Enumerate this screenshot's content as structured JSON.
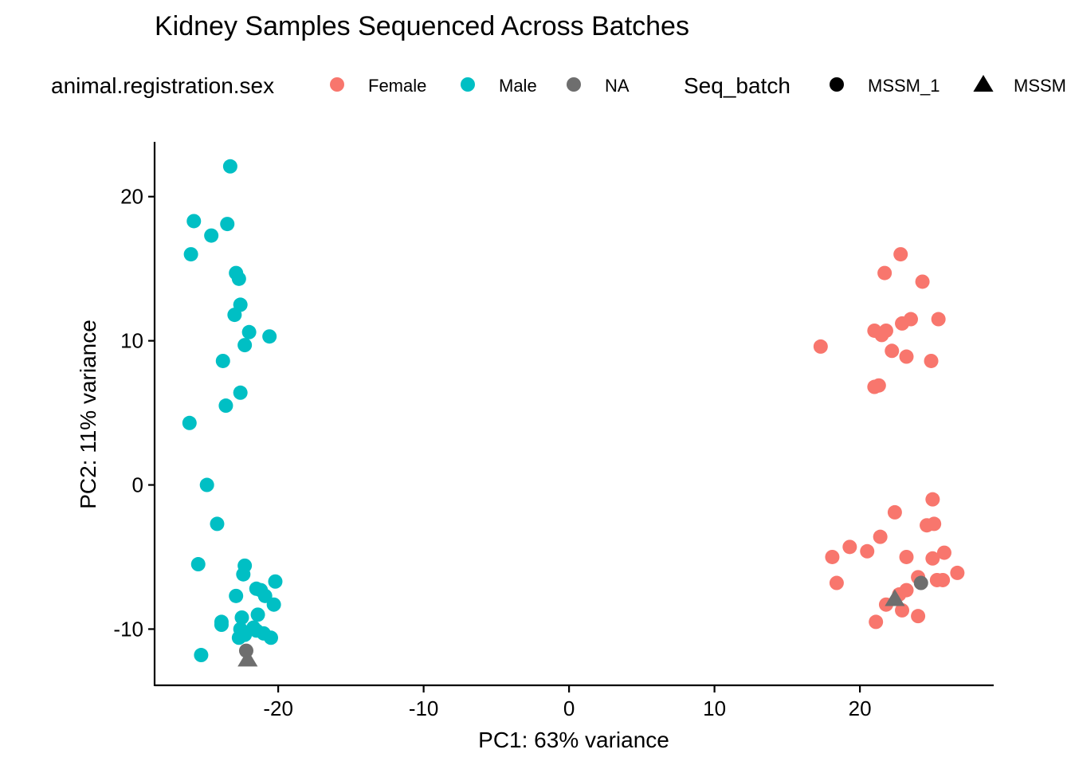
{
  "chart_data": {
    "type": "scatter",
    "title": "Kidney Samples Sequenced Across Batches",
    "xlabel": "PC1: 63% variance",
    "ylabel": "PC2: 11% variance",
    "xlim": [
      -28.5,
      29.2
    ],
    "ylim": [
      -13.9,
      23.8
    ],
    "xticks": [
      -20,
      -10,
      0,
      10,
      20
    ],
    "xtick_labels": [
      "-20",
      "-10",
      "0",
      "10",
      "20"
    ],
    "yticks": [
      -10,
      0,
      10,
      20
    ],
    "ytick_labels": [
      "-10",
      "0",
      "10",
      "20"
    ],
    "grid": false,
    "legend_position": "top",
    "legends": [
      {
        "title": "animal.registration.sex",
        "entries": [
          {
            "label": "Female",
            "color": "#F8766D",
            "shape": "circle"
          },
          {
            "label": "Male",
            "color": "#00BFC4",
            "shape": "circle"
          },
          {
            "label": "NA",
            "color": "#6E6E6E",
            "shape": "circle"
          }
        ]
      },
      {
        "title": "Seq_batch",
        "entries": [
          {
            "label": "MSSM_1",
            "color": "#000000",
            "shape": "circle"
          },
          {
            "label": "MSSM",
            "color": "#000000",
            "shape": "triangle"
          }
        ]
      }
    ],
    "series": [
      {
        "name": "Male",
        "color": "#00BFC4",
        "batch": "MSSM_1",
        "shape": "circle",
        "points": [
          [
            -23.3,
            22.1
          ],
          [
            -25.8,
            18.3
          ],
          [
            -23.5,
            18.1
          ],
          [
            -24.6,
            17.3
          ],
          [
            -26.0,
            16.0
          ],
          [
            -22.9,
            14.7
          ],
          [
            -22.7,
            14.3
          ],
          [
            -22.6,
            12.5
          ],
          [
            -23.0,
            11.8
          ],
          [
            -22.0,
            10.6
          ],
          [
            -20.6,
            10.3
          ],
          [
            -22.3,
            9.7
          ],
          [
            -23.8,
            8.6
          ],
          [
            -22.6,
            6.4
          ],
          [
            -23.6,
            5.5
          ],
          [
            -26.1,
            4.3
          ],
          [
            -24.9,
            0.0
          ],
          [
            -24.2,
            -2.7
          ],
          [
            -25.5,
            -5.5
          ],
          [
            -22.3,
            -5.6
          ],
          [
            -22.4,
            -6.2
          ],
          [
            -20.2,
            -6.7
          ],
          [
            -21.5,
            -7.2
          ],
          [
            -21.2,
            -7.3
          ],
          [
            -22.9,
            -7.7
          ],
          [
            -20.9,
            -7.7
          ],
          [
            -20.3,
            -8.3
          ],
          [
            -21.4,
            -9.0
          ],
          [
            -22.5,
            -9.2
          ],
          [
            -23.9,
            -9.5
          ],
          [
            -23.9,
            -9.7
          ],
          [
            -21.7,
            -9.9
          ],
          [
            -22.6,
            -10.0
          ],
          [
            -21.5,
            -10.1
          ],
          [
            -21.0,
            -10.3
          ],
          [
            -22.3,
            -10.4
          ],
          [
            -20.5,
            -10.6
          ],
          [
            -22.7,
            -10.6
          ],
          [
            -25.3,
            -11.8
          ]
        ]
      },
      {
        "name": "Female",
        "color": "#F8766D",
        "batch": "MSSM_1",
        "shape": "circle",
        "points": [
          [
            22.8,
            16.0
          ],
          [
            21.7,
            14.7
          ],
          [
            24.3,
            14.1
          ],
          [
            25.4,
            11.5
          ],
          [
            23.5,
            11.5
          ],
          [
            22.9,
            11.2
          ],
          [
            21.0,
            10.7
          ],
          [
            21.8,
            10.7
          ],
          [
            21.5,
            10.4
          ],
          [
            17.3,
            9.6
          ],
          [
            22.2,
            9.3
          ],
          [
            23.2,
            8.9
          ],
          [
            24.9,
            8.6
          ],
          [
            21.3,
            6.9
          ],
          [
            21.0,
            6.8
          ],
          [
            25.0,
            -1.0
          ],
          [
            22.4,
            -1.9
          ],
          [
            24.6,
            -2.8
          ],
          [
            25.1,
            -2.7
          ],
          [
            21.4,
            -3.6
          ],
          [
            19.3,
            -4.3
          ],
          [
            20.5,
            -4.6
          ],
          [
            25.8,
            -4.7
          ],
          [
            18.1,
            -5.0
          ],
          [
            23.2,
            -5.0
          ],
          [
            25.0,
            -5.1
          ],
          [
            26.7,
            -6.1
          ],
          [
            24.0,
            -6.4
          ],
          [
            25.3,
            -6.6
          ],
          [
            25.7,
            -6.6
          ],
          [
            18.4,
            -6.8
          ],
          [
            23.2,
            -7.3
          ],
          [
            22.7,
            -7.6
          ],
          [
            21.8,
            -8.3
          ],
          [
            22.9,
            -8.7
          ],
          [
            21.1,
            -9.5
          ],
          [
            24.0,
            -9.1
          ]
        ]
      },
      {
        "name": "NA",
        "color": "#6E6E6E",
        "batch": "MSSM_1",
        "shape": "circle",
        "points": [
          [
            24.2,
            -6.8
          ],
          [
            -22.2,
            -11.5
          ]
        ]
      },
      {
        "name": "NA",
        "color": "#6E6E6E",
        "batch": "MSSM",
        "shape": "triangle",
        "points": [
          [
            22.4,
            -7.9
          ],
          [
            -22.1,
            -12.1
          ]
        ]
      }
    ]
  }
}
